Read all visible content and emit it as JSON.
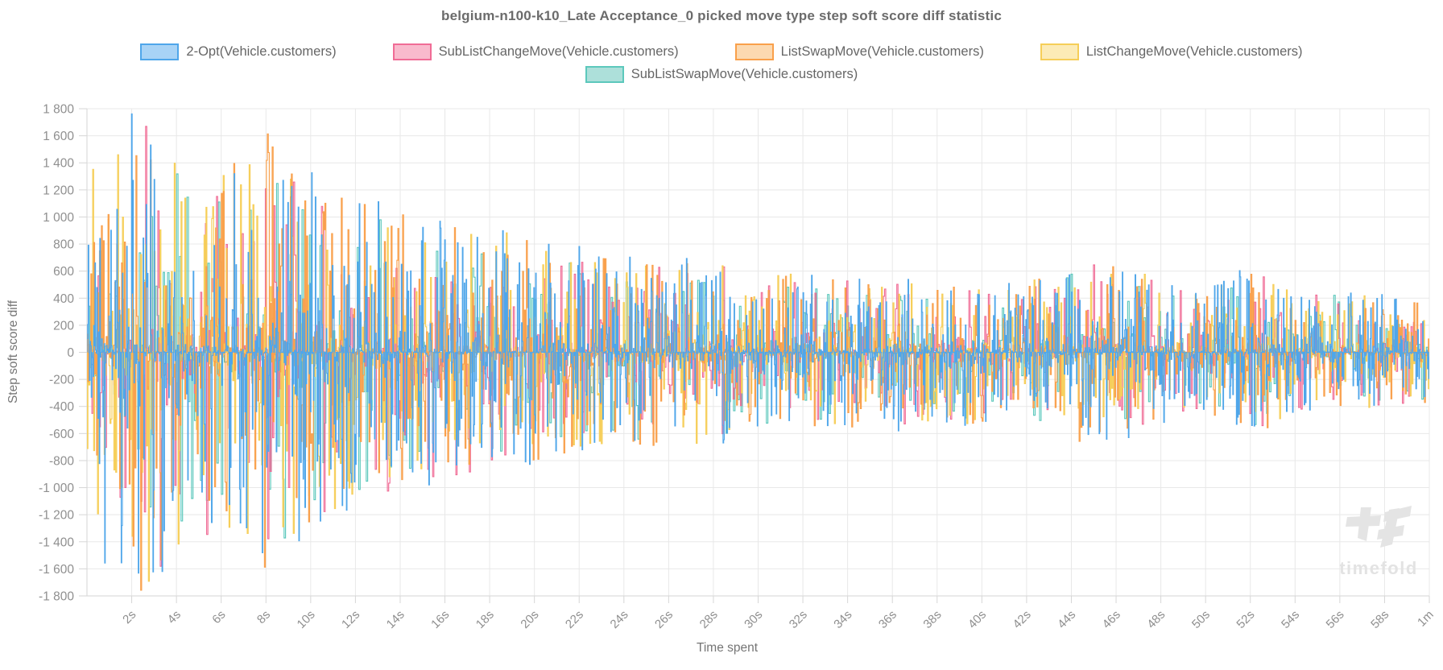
{
  "watermark": {
    "text": "timefold"
  },
  "chart_data": {
    "type": "line",
    "title": "belgium-n100-k10_Late Acceptance_0 picked move type step soft score diff statistic",
    "xlabel": "Time spent",
    "ylabel": "Step soft score diff",
    "xlim_seconds": [
      0,
      60
    ],
    "ylim": [
      -1800,
      1800
    ],
    "y_tick_step": 200,
    "y_tick_labels": [
      "1 800",
      "1 600",
      "1 400",
      "1 200",
      "1 000",
      "800",
      "600",
      "400",
      "200",
      "0",
      "-200",
      "-400",
      "-600",
      "-800",
      "-1 000",
      "-1 200",
      "-1 400",
      "-1 600",
      "-1 800"
    ],
    "x_tick_seconds": [
      2,
      4,
      6,
      8,
      10,
      12,
      14,
      16,
      18,
      20,
      22,
      24,
      26,
      28,
      30,
      32,
      34,
      36,
      38,
      40,
      42,
      44,
      46,
      48,
      50,
      52,
      54,
      56,
      58,
      60
    ],
    "x_tick_labels": [
      "2s",
      "4s",
      "6s",
      "8s",
      "10s",
      "12s",
      "14s",
      "16s",
      "18s",
      "20s",
      "22s",
      "24s",
      "26s",
      "28s",
      "30s",
      "32s",
      "34s",
      "36s",
      "38s",
      "40s",
      "42s",
      "44s",
      "46s",
      "48s",
      "50s",
      "52s",
      "54s",
      "56s",
      "58s",
      "1m"
    ],
    "grid": true,
    "legend_position": "top",
    "grid_color": "#e8e8e8",
    "axis_color": "#d6d6d6",
    "tick_text_color": "#8f8f8f",
    "title_color": "#6b6b6b",
    "legend_text_color": "#666666",
    "series": [
      {
        "name": "2-Opt(Vehicle.customers)",
        "color": "#4FA6EA",
        "fill": "#A8D3F6",
        "points": 2200,
        "amp_scale": 1.0,
        "seed": 11
      },
      {
        "name": "SubListChangeMove(Vehicle.customers)",
        "color": "#F06C96",
        "fill": "#F9BACD",
        "points": 1100,
        "amp_scale": 0.95,
        "seed": 22
      },
      {
        "name": "ListSwapMove(Vehicle.customers)",
        "color": "#F9A04B",
        "fill": "#FCD9B0",
        "points": 1400,
        "amp_scale": 0.97,
        "seed": 33
      },
      {
        "name": "ListChangeMove(Vehicle.customers)",
        "color": "#F6CE58",
        "fill": "#FCEBB6",
        "points": 1400,
        "amp_scale": 0.97,
        "seed": 44
      },
      {
        "name": "SubListSwapMove(Vehicle.customers)",
        "color": "#5CC8BC",
        "fill": "#ADE0DA",
        "points": 900,
        "amp_scale": 0.9,
        "seed": 55
      }
    ],
    "amplitude_envelope": [
      [
        0,
        1500
      ],
      [
        1,
        1700
      ],
      [
        2.5,
        1820
      ],
      [
        4,
        1550
      ],
      [
        6,
        1450
      ],
      [
        8,
        1680
      ],
      [
        9.5,
        1400
      ],
      [
        12,
        1180
      ],
      [
        14,
        1060
      ],
      [
        16,
        1000
      ],
      [
        18,
        960
      ],
      [
        20,
        840
      ],
      [
        22,
        790
      ],
      [
        24,
        730
      ],
      [
        26,
        710
      ],
      [
        28,
        690
      ],
      [
        30,
        610
      ],
      [
        32,
        590
      ],
      [
        34,
        570
      ],
      [
        36,
        590
      ],
      [
        38,
        530
      ],
      [
        40,
        550
      ],
      [
        42,
        530
      ],
      [
        44,
        690
      ],
      [
        46,
        710
      ],
      [
        48,
        530
      ],
      [
        50,
        490
      ],
      [
        52,
        650
      ],
      [
        54,
        450
      ],
      [
        56,
        480
      ],
      [
        58,
        430
      ],
      [
        60,
        410
      ]
    ],
    "noise_exponent": 4,
    "draw_order": [
      4,
      1,
      3,
      2,
      0
    ],
    "note": "dense step-noise centered on 0; per-step values are stochastic, bounded by amplitude_envelope (value units = score diff)"
  }
}
